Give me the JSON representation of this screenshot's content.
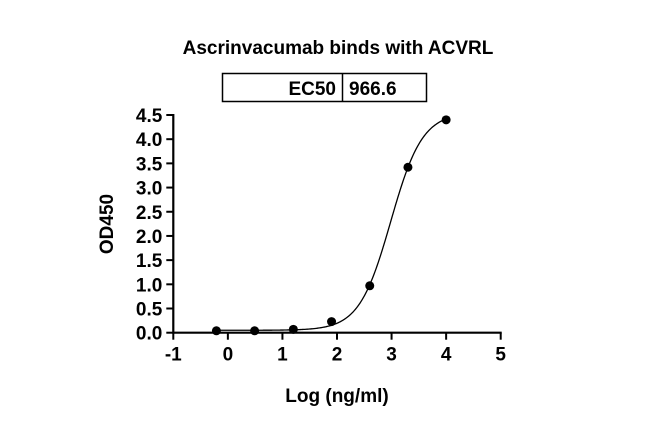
{
  "chart_data": {
    "type": "scatter",
    "title": "Ascrinvacumab binds with ACVRL",
    "xlabel": "Log (ng/ml)",
    "ylabel": "OD450",
    "xlim": [
      -1,
      5
    ],
    "ylim": [
      0,
      4.5
    ],
    "xticks": [
      "-1",
      "0",
      "1",
      "2",
      "3",
      "4",
      "5"
    ],
    "yticks": [
      "0.0",
      "0.5",
      "1.0",
      "1.5",
      "2.0",
      "2.5",
      "3.0",
      "3.5",
      "4.0",
      "4.5"
    ],
    "grid": false,
    "points": {
      "x": [
        -0.21,
        0.49,
        1.2,
        1.9,
        2.6,
        3.3,
        4.0
      ],
      "y": [
        0.04,
        0.04,
        0.07,
        0.23,
        0.97,
        3.42,
        4.4
      ]
    },
    "fit": {
      "model": "4PL sigmoid",
      "bottom": 0.05,
      "top": 4.55,
      "log_ec50": 2.985,
      "hill": 1.5
    },
    "ec50_table": {
      "label": "EC50",
      "value": "966.6"
    }
  }
}
